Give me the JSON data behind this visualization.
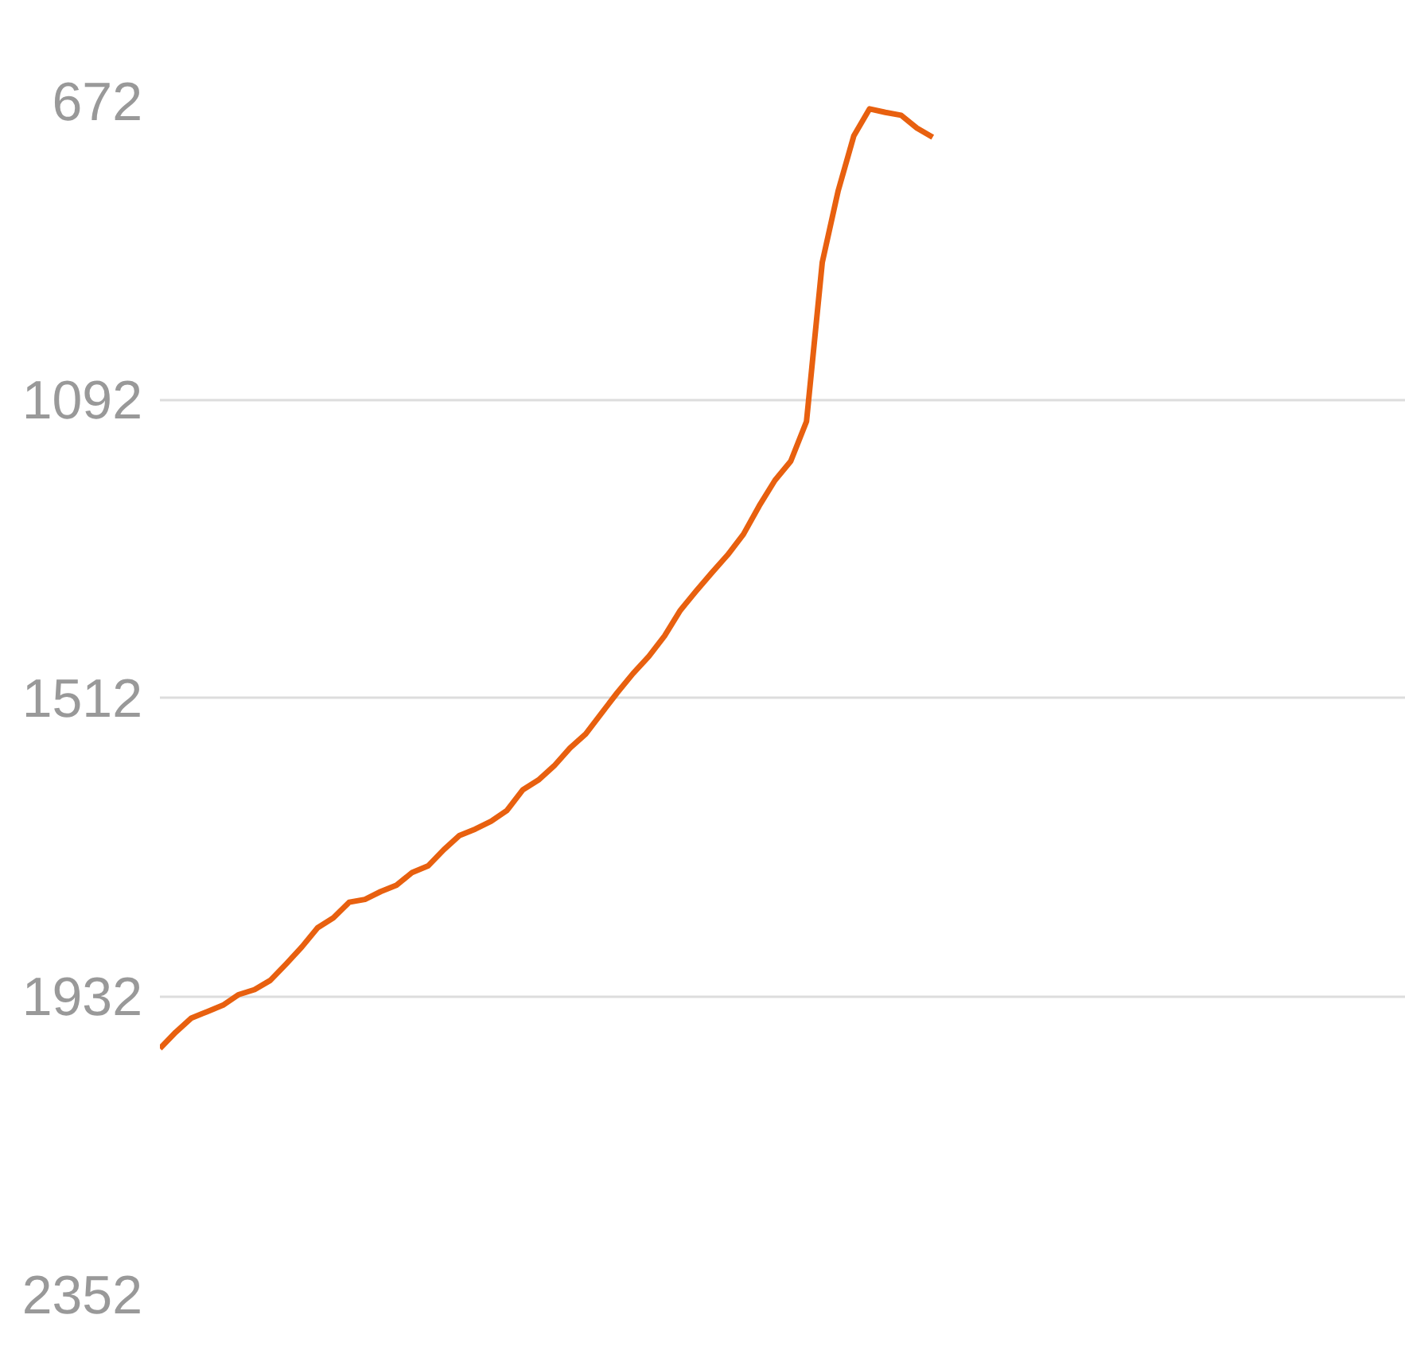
{
  "chart_data": {
    "type": "line",
    "categories": [
      null,
      null,
      null,
      null,
      null,
      null,
      null,
      null,
      null,
      null,
      null,
      null,
      null,
      null,
      null,
      null,
      null,
      null,
      null,
      null,
      null,
      null,
      null,
      null,
      null,
      null,
      null,
      null,
      null,
      null,
      null,
      null,
      null,
      null,
      null,
      null,
      null,
      null,
      null,
      null,
      null,
      null,
      null,
      null,
      null,
      null,
      null,
      null,
      null,
      null,
      null,
      null,
      null,
      null,
      null,
      null,
      null,
      null,
      null,
      null,
      null,
      null,
      null,
      null,
      null,
      null,
      null,
      null,
      null,
      null,
      null,
      null,
      null,
      null,
      null,
      null,
      null,
      null,
      null,
      null
    ],
    "series": [
      {
        "color": "#e8600f",
        "values": [
          2006,
          1983,
          1963,
          1954,
          1945,
          1930,
          1923,
          1910,
          1887,
          1863,
          1836,
          1822,
          1800,
          1796,
          1785,
          1776,
          1758,
          1749,
          1726,
          1706,
          1697,
          1686,
          1671,
          1642,
          1628,
          1608,
          1583,
          1563,
          1534,
          1505,
          1478,
          1454,
          1425,
          1389,
          1362,
          1336,
          1311,
          1282,
          1242,
          1206,
          1179,
          1123,
          899,
          799,
          721,
          683,
          688,
          692,
          710,
          723,
          null,
          null,
          null,
          null,
          null,
          null,
          null,
          null,
          null,
          null,
          null,
          null,
          null,
          null,
          null,
          null,
          null,
          null,
          null,
          null,
          null,
          null,
          null,
          null,
          null,
          null,
          null,
          null,
          null,
          null
        ]
      }
    ],
    "ylim": [
      2352,
      672
    ],
    "yticks": [
      672,
      1092,
      1512,
      1932,
      2352
    ],
    "grid": "y",
    "tick_labels": "y",
    "marker": "none",
    "line_style": "solid"
  }
}
